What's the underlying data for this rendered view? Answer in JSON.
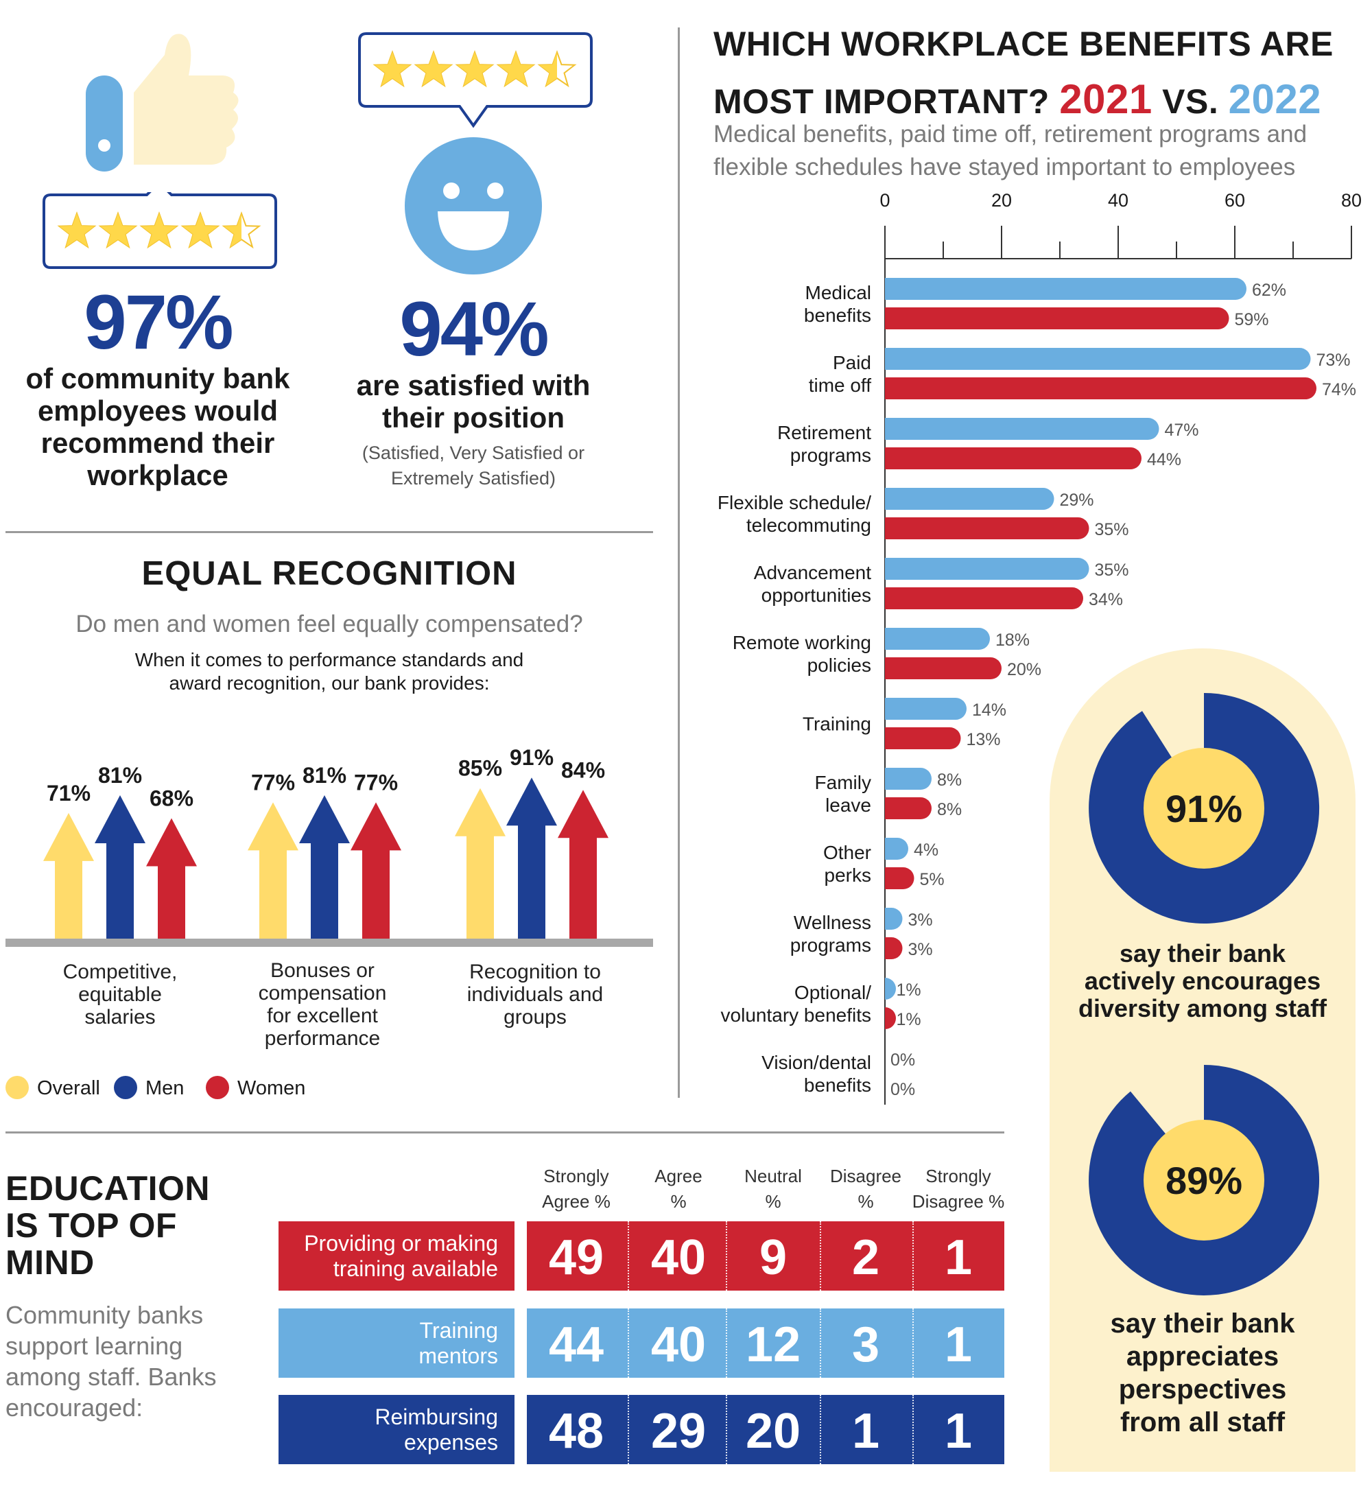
{
  "colors": {
    "navy": "#1d3f93",
    "light_blue": "#6aaee0",
    "red": "#cc2431",
    "yellow": "#ffdb6b",
    "cream": "#fdf1cc",
    "gray_text": "#7a7a7a",
    "divider": "#9a9a9a"
  },
  "stat_recommend": {
    "value": "97%",
    "caption": [
      "of community bank",
      "employees would",
      "recommend their",
      "workplace"
    ],
    "icon": "thumbs-up-icon",
    "stars": 4.5
  },
  "stat_satisfied": {
    "value": "94%",
    "caption": [
      "are satisfied with",
      "their position"
    ],
    "note": [
      "(Satisfied, Very Satisfied or",
      "Extremely Satisfied)"
    ],
    "icon": "smiley-face-icon",
    "stars": 4.5
  },
  "recognition": {
    "title": "EQUAL RECOGNITION",
    "question": "Do men and women feel equally compensated?",
    "intro": [
      "When it comes to performance standards and",
      "award recognition, our bank provides:"
    ],
    "legend": [
      "Overall",
      "Men",
      "Women"
    ],
    "groups": [
      {
        "label": [
          "Competitive,",
          "equitable",
          "salaries"
        ],
        "values": [
          71,
          81,
          68
        ],
        "labels": [
          "71%",
          "81%",
          "68%"
        ]
      },
      {
        "label": [
          "Bonuses or",
          "compensation",
          "for excellent",
          "performance"
        ],
        "values": [
          77,
          81,
          77
        ],
        "labels": [
          "77%",
          "81%",
          "77%"
        ]
      },
      {
        "label": [
          "Recognition to",
          "individuals and",
          "groups"
        ],
        "values": [
          85,
          91,
          84
        ],
        "labels": [
          "85%",
          "91%",
          "84%"
        ]
      }
    ]
  },
  "benefits": {
    "title_line1": "WHICH WORKPLACE BENEFITS ARE",
    "title_line2": "MOST IMPORTANT?",
    "year_a": "2021",
    "vs": "VS.",
    "year_b": "2022",
    "subtitle": [
      "Medical benefits, paid time off, retirement programs and",
      "flexible schedules have stayed important to employees"
    ]
  },
  "chart_data": {
    "type": "bar",
    "orientation": "horizontal",
    "title": "WHICH WORKPLACE BENEFITS ARE MOST IMPORTANT? 2021 VS. 2022",
    "xlim": [
      0,
      80
    ],
    "x_ticks": [
      0,
      20,
      40,
      60,
      80
    ],
    "categories": [
      [
        "Medical",
        "benefits"
      ],
      [
        "Paid",
        "time off"
      ],
      [
        "Retirement",
        "programs"
      ],
      [
        "Flexible schedule/",
        "telecommuting"
      ],
      [
        "Advancement",
        "opportunities"
      ],
      [
        "Remote working",
        "policies"
      ],
      [
        "Training"
      ],
      [
        "Family",
        "leave"
      ],
      [
        "Other",
        "perks"
      ],
      [
        "Wellness",
        "programs"
      ],
      [
        "Optional/",
        "voluntary benefits"
      ],
      [
        "Vision/dental",
        "benefits"
      ]
    ],
    "series": [
      {
        "name": "2022",
        "color": "#6aaee0",
        "values": [
          62,
          73,
          47,
          29,
          35,
          18,
          14,
          8,
          4,
          3,
          1,
          0
        ]
      },
      {
        "name": "2021",
        "color": "#cc2431",
        "values": [
          59,
          74,
          44,
          35,
          34,
          20,
          13,
          8,
          5,
          3,
          1,
          0
        ]
      }
    ]
  },
  "diversity": [
    {
      "value": 91,
      "label": "91%",
      "caption": [
        "say their bank",
        "actively encourages",
        "diversity among staff"
      ]
    },
    {
      "value": 89,
      "label": "89%",
      "caption": [
        "say their bank",
        "appreciates",
        "perspectives",
        "from all staff"
      ]
    }
  ],
  "education": {
    "title": [
      "EDUCATION",
      "IS TOP OF",
      "MIND"
    ],
    "intro": [
      "Community banks",
      "support learning",
      "among staff. Banks",
      "encouraged:"
    ],
    "columns": [
      [
        "Strongly",
        "Agree %"
      ],
      [
        "Agree",
        "%"
      ],
      [
        "Neutral",
        "%"
      ],
      [
        "Disagree",
        "%"
      ],
      [
        "Strongly",
        "Disagree %"
      ]
    ],
    "rows": [
      {
        "label": [
          "Providing or making",
          "training available"
        ],
        "values": [
          "49",
          "40",
          "9",
          "2",
          "1"
        ],
        "color": "#cc2431"
      },
      {
        "label": [
          "Training",
          "mentors"
        ],
        "values": [
          "44",
          "40",
          "12",
          "3",
          "1"
        ],
        "color": "#6aaee0"
      },
      {
        "label": [
          "Reimbursing",
          "expenses"
        ],
        "values": [
          "48",
          "29",
          "20",
          "1",
          "1"
        ],
        "color": "#1d3f93"
      }
    ]
  }
}
